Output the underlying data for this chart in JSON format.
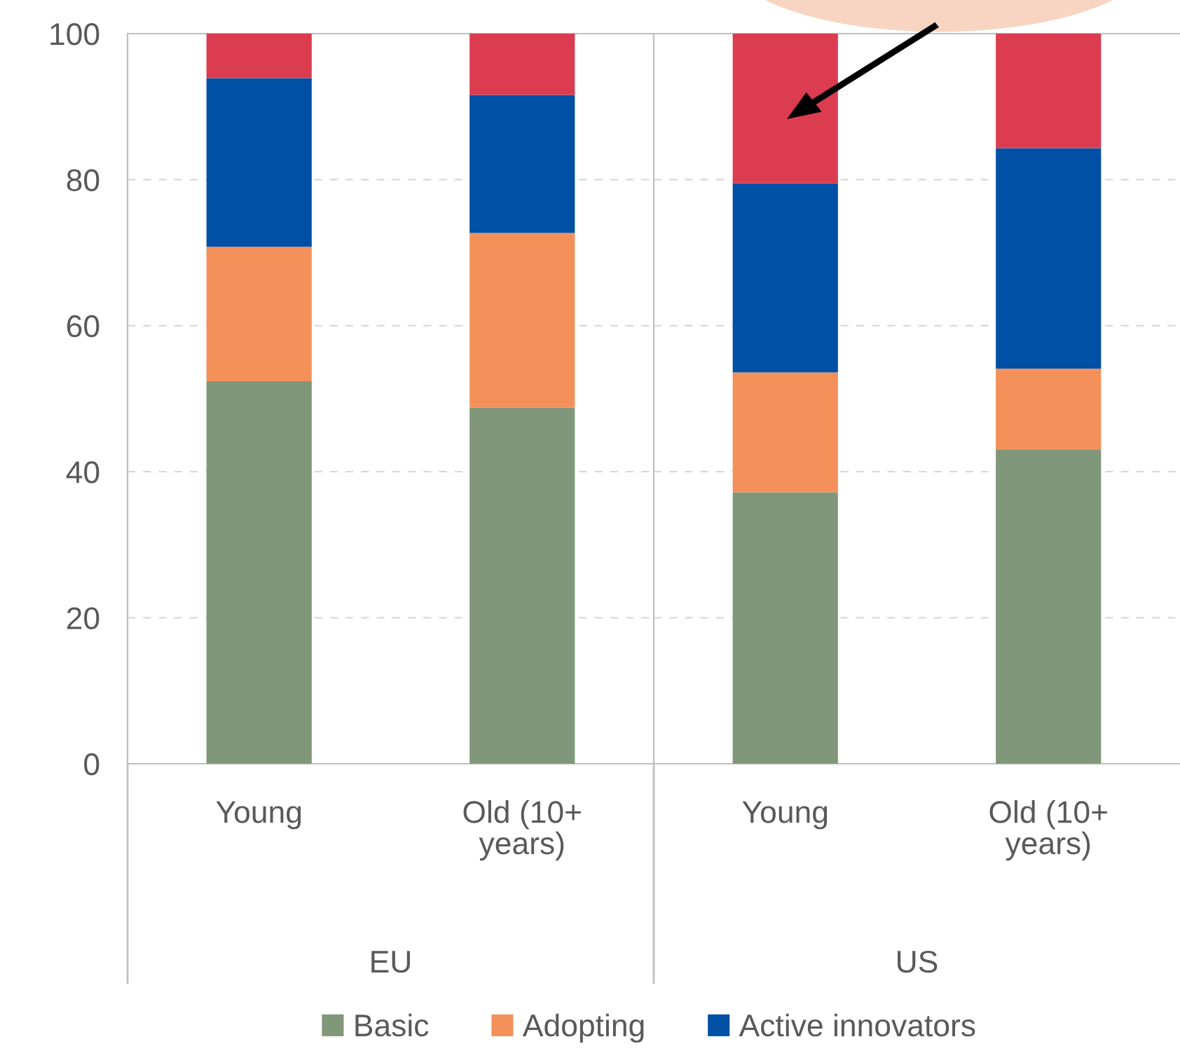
{
  "chart_data": [
    {
      "type": "bar",
      "stacked": true,
      "xlabel": "EU",
      "categories": [
        "Young",
        "Old (10+\nyears)"
      ],
      "series": [
        {
          "name": "Basic",
          "color": "#81977a",
          "values": [
            52.4,
            48.8
          ]
        },
        {
          "name": "Adopting",
          "color": "#f4905a",
          "values": [
            18.4,
            23.9
          ]
        },
        {
          "name": "Active innovators",
          "color": "#0050a6",
          "values": [
            23.1,
            18.9
          ]
        },
        {
          "color": "#dc3c50",
          "values": [
            6.1,
            8.4
          ]
        }
      ],
      "ylim": [
        0,
        100
      ],
      "yticks": [
        0,
        20,
        40,
        60,
        80,
        100
      ],
      "grid": "y",
      "legend": "bottom"
    },
    {
      "type": "bar",
      "stacked": true,
      "xlabel": "US",
      "categories": [
        "Young",
        "Old (10+\nyears)"
      ],
      "series": [
        {
          "color": "#81977a",
          "values": [
            37.2,
            43.0
          ]
        },
        {
          "color": "#f4905a",
          "values": [
            16.4,
            11.1
          ]
        },
        {
          "color": "#0050a6",
          "values": [
            25.9,
            30.2
          ]
        },
        {
          "color": "#dc3c50",
          "values": [
            20.5,
            15.7
          ]
        }
      ],
      "ylim": [
        0,
        100
      ],
      "yticks": [
        0,
        20,
        40,
        60,
        80,
        100
      ],
      "grid": "y",
      "tick_labels": "x"
    }
  ]
}
